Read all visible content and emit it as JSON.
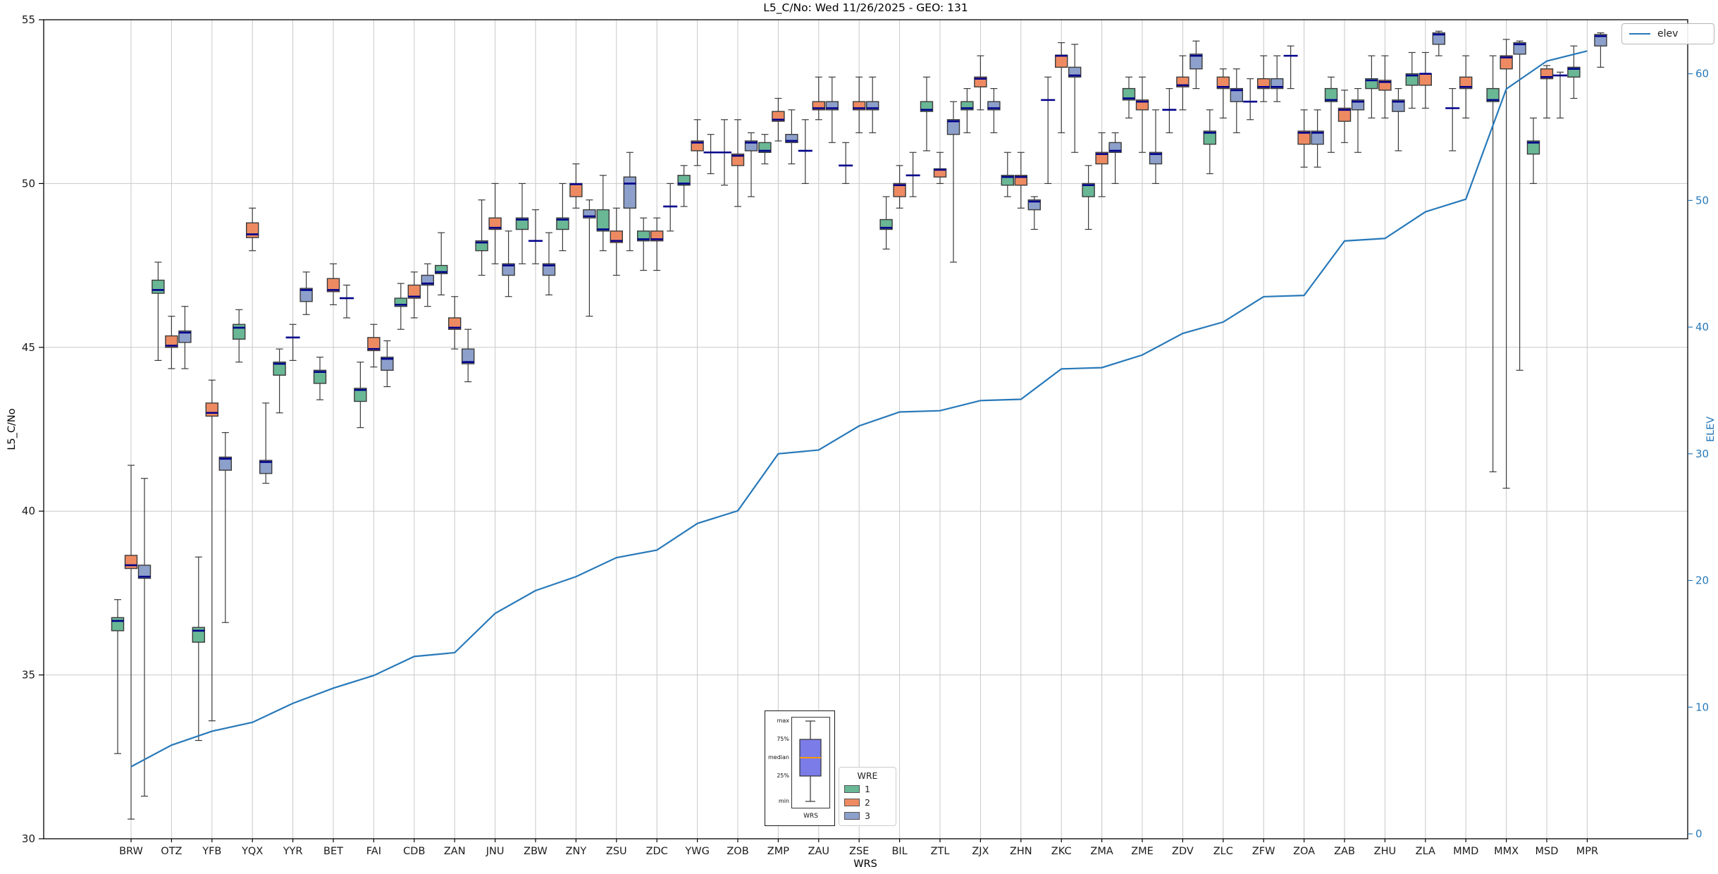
{
  "chart_data": {
    "type": "boxplot+line",
    "title": "L5_C/No: Wed 11/26/2025 - GEO: 131",
    "xlabel": "WRS",
    "ylabel_left": "L5_C/No",
    "ylabel_right": "ELEV",
    "ylim_left": [
      30,
      55
    ],
    "yticks_left": [
      30,
      35,
      40,
      45,
      50,
      55
    ],
    "yticks_right": [
      0,
      10,
      20,
      30,
      40,
      50,
      60
    ],
    "grid": true,
    "box_value_format": [
      "min",
      "q1",
      "median",
      "q3",
      "max"
    ],
    "categories": [
      "BRW",
      "OTZ",
      "YFB",
      "YQX",
      "YYR",
      "BET",
      "FAI",
      "CDB",
      "ZAN",
      "JNU",
      "ZBW",
      "ZNY",
      "ZSU",
      "ZDC",
      "YWG",
      "ZOB",
      "ZMP",
      "ZAU",
      "ZSE",
      "BIL",
      "ZTL",
      "ZJX",
      "ZHN",
      "ZKC",
      "ZMA",
      "ZME",
      "ZDV",
      "ZLC",
      "ZFW",
      "ZOA",
      "ZAB",
      "ZHU",
      "ZLA",
      "MMD",
      "MMX",
      "MSD",
      "MPR"
    ],
    "series": [
      {
        "name": "1",
        "color": "#69b795",
        "boxes": [
          [
            32.6,
            36.35,
            36.65,
            36.75,
            37.3
          ],
          [
            44.6,
            46.65,
            46.75,
            47.05,
            47.6
          ],
          [
            33.0,
            36.0,
            36.35,
            36.45,
            38.6
          ],
          [
            44.55,
            45.25,
            45.6,
            45.7,
            46.15
          ],
          [
            43.0,
            44.15,
            44.5,
            44.55,
            44.95
          ],
          [
            43.4,
            43.9,
            44.25,
            44.3,
            44.7
          ],
          [
            42.55,
            43.35,
            43.7,
            43.75,
            44.55
          ],
          [
            45.55,
            46.25,
            46.3,
            46.5,
            46.95
          ],
          [
            46.6,
            47.25,
            47.3,
            47.5,
            48.5
          ],
          [
            47.2,
            47.95,
            48.2,
            48.25,
            49.5
          ],
          [
            47.55,
            48.6,
            48.9,
            48.95,
            50.0
          ],
          [
            47.95,
            48.6,
            48.9,
            48.95,
            50.0
          ],
          [
            47.95,
            48.55,
            48.6,
            49.2,
            50.25
          ],
          [
            47.35,
            48.25,
            48.3,
            48.55,
            48.95
          ],
          [
            49.3,
            49.95,
            50.0,
            50.25,
            50.55
          ],
          [
            49.95,
            50.95,
            50.95,
            50.95,
            51.95
          ],
          [
            50.6,
            50.95,
            51.0,
            51.25,
            51.5
          ],
          [
            50.0,
            51.0,
            51.0,
            51.0,
            51.95
          ],
          [
            50.0,
            50.55,
            50.55,
            50.55,
            51.25
          ],
          [
            48.0,
            48.6,
            48.65,
            48.9,
            49.6
          ],
          [
            51.0,
            52.2,
            52.25,
            52.5,
            53.25
          ],
          [
            51.55,
            52.25,
            52.3,
            52.5,
            52.9
          ],
          [
            49.6,
            49.95,
            50.2,
            50.25,
            50.95
          ],
          [
            50.0,
            52.55,
            52.55,
            52.55,
            53.25
          ],
          [
            48.6,
            49.6,
            49.95,
            50.0,
            50.55
          ],
          [
            52.0,
            52.55,
            52.6,
            52.9,
            53.25
          ],
          [
            51.55,
            52.25,
            52.25,
            52.25,
            52.9
          ],
          [
            50.3,
            51.2,
            51.55,
            51.6,
            52.25
          ],
          [
            51.95,
            52.5,
            52.5,
            52.5,
            53.2
          ],
          [
            52.9,
            53.9,
            53.9,
            53.9,
            54.2
          ],
          [
            50.95,
            52.5,
            52.55,
            52.9,
            53.25
          ],
          [
            52.0,
            52.9,
            53.15,
            53.2,
            53.9
          ],
          [
            52.3,
            53.0,
            53.3,
            53.35,
            54.0
          ],
          [
            51.0,
            52.3,
            52.3,
            52.3,
            52.9
          ],
          [
            41.2,
            52.5,
            52.55,
            52.9,
            53.9
          ],
          [
            50.0,
            50.9,
            51.25,
            51.3,
            52.0
          ],
          [
            52.6,
            53.25,
            53.5,
            53.55,
            54.2
          ]
        ]
      },
      {
        "name": "2",
        "color": "#ee8a62",
        "boxes": [
          [
            30.6,
            38.25,
            38.35,
            38.65,
            41.4
          ],
          [
            44.35,
            45.0,
            45.05,
            45.35,
            45.95
          ],
          [
            33.6,
            42.9,
            43.0,
            43.3,
            44.0
          ],
          [
            47.95,
            48.35,
            48.45,
            48.8,
            49.25
          ],
          [
            44.6,
            45.3,
            45.3,
            45.3,
            45.7
          ],
          [
            46.3,
            46.7,
            46.75,
            47.1,
            47.55
          ],
          [
            44.4,
            44.9,
            44.95,
            45.3,
            45.7
          ],
          [
            45.9,
            46.5,
            46.55,
            46.9,
            47.3
          ],
          [
            44.95,
            45.55,
            45.6,
            45.9,
            46.55
          ],
          [
            47.55,
            48.6,
            48.65,
            48.95,
            50.0
          ],
          [
            47.55,
            48.25,
            48.25,
            48.25,
            49.2
          ],
          [
            49.25,
            49.6,
            49.98,
            50.0,
            50.6
          ],
          [
            47.2,
            48.2,
            48.25,
            48.55,
            49.25
          ],
          [
            47.35,
            48.25,
            48.3,
            48.55,
            48.95
          ],
          [
            50.55,
            51.0,
            51.25,
            51.3,
            51.95
          ],
          [
            49.3,
            50.55,
            50.85,
            50.9,
            51.95
          ],
          [
            51.3,
            51.9,
            51.95,
            52.2,
            52.6
          ],
          [
            51.95,
            52.25,
            52.3,
            52.5,
            53.25
          ],
          [
            51.55,
            52.25,
            52.3,
            52.5,
            53.25
          ],
          [
            49.25,
            49.6,
            49.95,
            50.0,
            50.55
          ],
          [
            50.0,
            50.2,
            50.42,
            50.45,
            50.95
          ],
          [
            52.25,
            52.95,
            53.2,
            53.25,
            53.9
          ],
          [
            49.25,
            49.95,
            50.2,
            50.25,
            50.95
          ],
          [
            51.55,
            53.55,
            53.9,
            53.92,
            54.3
          ],
          [
            49.6,
            50.6,
            50.9,
            50.95,
            51.55
          ],
          [
            50.95,
            52.25,
            52.5,
            52.55,
            53.25
          ],
          [
            52.25,
            52.95,
            53.0,
            53.25,
            53.9
          ],
          [
            52.0,
            52.9,
            52.95,
            53.25,
            53.5
          ],
          [
            52.5,
            52.9,
            52.95,
            53.2,
            53.9
          ],
          [
            50.5,
            51.2,
            51.55,
            51.6,
            52.25
          ],
          [
            51.25,
            51.9,
            52.25,
            52.3,
            52.85
          ],
          [
            52.0,
            52.85,
            53.1,
            53.15,
            53.9
          ],
          [
            52.3,
            53.0,
            53.35,
            53.35,
            54.0
          ],
          [
            52.0,
            52.9,
            52.95,
            53.25,
            53.9
          ],
          [
            40.7,
            53.5,
            53.85,
            53.9,
            54.4
          ],
          [
            52.0,
            53.2,
            53.25,
            53.5,
            53.6
          ],
          null
        ]
      },
      {
        "name": "3",
        "color": "#8da0cb",
        "boxes": [
          [
            31.3,
            37.95,
            38.0,
            38.35,
            41.0
          ],
          [
            44.35,
            45.15,
            45.45,
            45.5,
            46.25
          ],
          [
            36.6,
            41.25,
            41.6,
            41.65,
            42.4
          ],
          [
            40.85,
            41.15,
            41.5,
            41.55,
            43.3
          ],
          [
            46.0,
            46.4,
            46.75,
            46.8,
            47.3
          ],
          [
            45.9,
            46.5,
            46.5,
            46.5,
            46.9
          ],
          [
            43.8,
            44.3,
            44.65,
            44.7,
            45.2
          ],
          [
            46.25,
            46.9,
            46.95,
            47.2,
            47.55
          ],
          [
            43.95,
            44.5,
            44.55,
            44.95,
            45.55
          ],
          [
            46.55,
            47.2,
            47.5,
            47.55,
            48.55
          ],
          [
            46.6,
            47.2,
            47.5,
            47.55,
            48.5
          ],
          [
            45.95,
            48.95,
            49.0,
            49.2,
            49.5
          ],
          [
            47.95,
            49.25,
            50.0,
            50.2,
            50.95
          ],
          [
            48.55,
            49.3,
            49.3,
            49.3,
            50.0
          ],
          [
            50.3,
            50.95,
            50.95,
            50.95,
            51.5
          ],
          [
            49.6,
            51.0,
            51.25,
            51.3,
            51.55
          ],
          [
            50.6,
            51.25,
            51.3,
            51.5,
            52.25
          ],
          [
            51.25,
            52.25,
            52.3,
            52.5,
            53.25
          ],
          [
            51.55,
            52.25,
            52.3,
            52.5,
            53.25
          ],
          [
            49.6,
            50.25,
            50.25,
            50.25,
            50.95
          ],
          [
            47.6,
            51.5,
            51.9,
            51.95,
            52.5
          ],
          [
            51.55,
            52.25,
            52.3,
            52.5,
            52.9
          ],
          [
            48.6,
            49.2,
            49.45,
            49.5,
            49.6
          ],
          [
            50.95,
            53.25,
            53.3,
            53.55,
            54.25
          ],
          [
            50.0,
            50.95,
            51.0,
            51.25,
            51.55
          ],
          [
            50.0,
            50.6,
            50.9,
            50.95,
            52.25
          ],
          [
            52.9,
            53.5,
            53.9,
            53.95,
            54.35
          ],
          [
            51.55,
            52.5,
            52.85,
            52.9,
            53.5
          ],
          [
            52.5,
            52.9,
            52.95,
            53.2,
            53.9
          ],
          [
            50.5,
            51.2,
            51.55,
            51.6,
            52.25
          ],
          [
            50.95,
            52.25,
            52.5,
            52.55,
            52.9
          ],
          [
            51.0,
            52.2,
            52.5,
            52.55,
            52.9
          ],
          [
            53.9,
            54.25,
            54.55,
            54.6,
            54.65
          ],
          null,
          [
            44.3,
            53.95,
            54.25,
            54.3,
            54.35
          ],
          [
            52.0,
            53.3,
            53.3,
            53.3,
            53.4
          ],
          [
            53.55,
            54.2,
            54.5,
            54.55,
            54.6
          ]
        ]
      }
    ],
    "line": {
      "name": "elev",
      "color": "#2879b9",
      "axis": "right",
      "values": [
        5.3,
        7.0,
        8.1,
        8.8,
        10.3,
        11.5,
        12.5,
        14.0,
        14.3,
        17.4,
        19.2,
        20.3,
        21.8,
        22.4,
        24.5,
        25.5,
        30.0,
        30.3,
        32.2,
        33.3,
        33.4,
        34.2,
        34.3,
        36.7,
        36.8,
        37.8,
        39.5,
        40.4,
        42.4,
        42.5,
        46.8,
        47.0,
        49.1,
        50.1,
        58.8,
        61.0,
        61.8
      ]
    },
    "legend": {
      "title": "WRE"
    },
    "inset_legend": {
      "labels": [
        "max",
        "75%",
        "median",
        "25%",
        "min"
      ],
      "xlabel": "WRS",
      "box_color": "#7b7ce8",
      "median_color": "#ff9900"
    },
    "style": {
      "median_color": "#00008b",
      "box_edge_color": "#3b3b3b",
      "grid_color": "#c9c9c9",
      "right_axis_color": "#2879b9"
    }
  }
}
